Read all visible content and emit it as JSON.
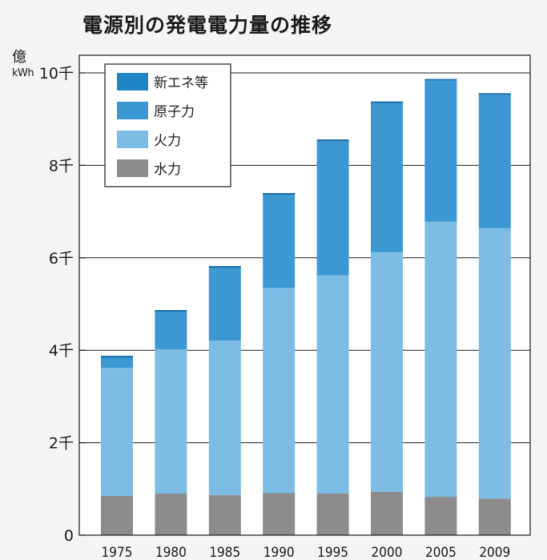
{
  "colors": {
    "new_energy": "#1f86c6",
    "nuclear": "#3d97d3",
    "thermal": "#7cbce5",
    "hydro": "#8c8c8c"
  },
  "chart_data": {
    "type": "bar",
    "stacked": true,
    "title": "電源別の発電電力量の推移",
    "unit_label": [
      "億",
      "kWh"
    ],
    "categories": [
      "1975",
      "1980",
      "1985",
      "1990",
      "1995",
      "2000",
      "2005",
      "2009"
    ],
    "series": [
      {
        "name": "水力",
        "color_key": "hydro",
        "values": [
          850,
          900,
          870,
          910,
          900,
          940,
          830,
          790
        ]
      },
      {
        "name": "火力",
        "color_key": "thermal",
        "values": [
          2770,
          3120,
          3340,
          4440,
          4720,
          5180,
          5950,
          5850
        ]
      },
      {
        "name": "原子力",
        "color_key": "nuclear",
        "values": [
          250,
          830,
          1590,
          2020,
          2910,
          3220,
          3050,
          2880
        ]
      },
      {
        "name": "新エネ等",
        "color_key": "new_energy",
        "values": [
          10,
          20,
          20,
          30,
          30,
          40,
          40,
          40
        ]
      }
    ],
    "legend_order": [
      "新エネ等",
      "原子力",
      "火力",
      "水力"
    ],
    "yticks": [
      {
        "value": 0,
        "label": "0"
      },
      {
        "value": 2000,
        "label": "2千"
      },
      {
        "value": 4000,
        "label": "4千"
      },
      {
        "value": 6000,
        "label": "6千"
      },
      {
        "value": 8000,
        "label": "8千"
      },
      {
        "value": 10000,
        "label": "10千"
      }
    ],
    "ylim": [
      0,
      10000
    ],
    "grid": true,
    "legend_position": "top-left"
  }
}
